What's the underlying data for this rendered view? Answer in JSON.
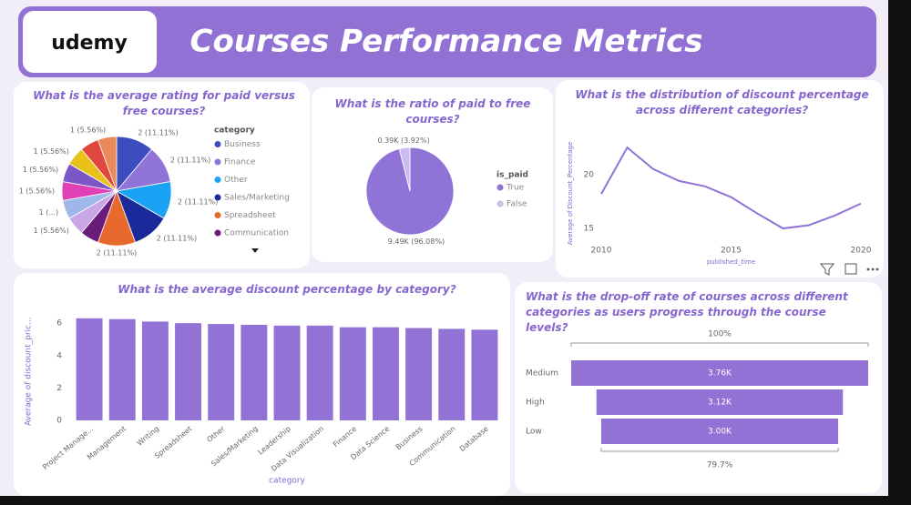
{
  "header": {
    "logo": "udemy",
    "title": "Courses Performance Metrics"
  },
  "chart_data": [
    {
      "type": "pie",
      "title": "What is the average rating for paid versus free courses?",
      "legend_title": "category",
      "categories": [
        "Business",
        "Finance",
        "Other",
        "Sales/Marketing",
        "Spreadsheet",
        "Communication",
        null,
        null,
        null,
        null,
        null,
        null,
        null
      ],
      "values": [
        2,
        2,
        2,
        2,
        2,
        1,
        1,
        1,
        1,
        1,
        1,
        1,
        1
      ],
      "value_labels": [
        "2 (11.11%)",
        "2 (11.11%)",
        "2 (11.11%)",
        "2 (11.11%)",
        "2 (11.11%)",
        null,
        "1 (5.56%)",
        "1 (...)",
        "1 (5.56%)",
        "1 (5.56%)",
        "1 (5.56%)",
        null,
        "1 (5.56%)"
      ],
      "colors": [
        "#3d4dbd",
        "#8f73d6",
        "#1aa3f5",
        "#1b2a9a",
        "#e8692d",
        "#6a1c7a",
        "#c9a6e6",
        "#9fb7e8",
        "#e03fb5",
        "#7a56c9",
        "#e8c21a",
        "#e2473f",
        "#e88a5a"
      ]
    },
    {
      "type": "pie",
      "title": "What is the ratio of paid to free courses?",
      "legend_title": "is_paid",
      "categories": [
        "True",
        "False"
      ],
      "values": [
        9490,
        390
      ],
      "value_labels": [
        "9.49K (96.08%)",
        "0.39K (3.92%)"
      ],
      "colors": [
        "#8f73d6",
        "#cbbcee"
      ]
    },
    {
      "type": "line",
      "title": "What is the distribution of discount percentage across different categories?",
      "x_label": "published_time",
      "y_label": "Average of Discount_Percentage",
      "x": [
        2010,
        2011,
        2012,
        2013,
        2014,
        2015,
        2016,
        2017,
        2018,
        2019,
        2020
      ],
      "values": [
        18.2,
        22.5,
        20.5,
        19.4,
        18.9,
        17.9,
        16.4,
        15.0,
        15.3,
        16.2,
        17.3
      ],
      "color": "#8f73d6",
      "xlim": [
        2010,
        2020
      ],
      "xticks": [
        2010,
        2015,
        2020
      ],
      "ylim": [
        13.4,
        23.1
      ],
      "yticks": [
        15,
        20
      ]
    },
    {
      "type": "bar",
      "title": "What is the average discount percentage by category?",
      "x_label": "category",
      "y_label": "Average of discount_pric...",
      "categories": [
        "Project Manage...",
        "Management",
        "Writing",
        "Spreadsheet",
        "Other",
        "Sales/Marketing",
        "Leadership",
        "Data Visualization",
        "Finance",
        "Data Science",
        "Business",
        "Communication",
        "Database"
      ],
      "values": [
        6.3,
        6.25,
        6.1,
        6.0,
        5.95,
        5.9,
        5.85,
        5.85,
        5.75,
        5.75,
        5.7,
        5.65,
        5.6
      ],
      "color": "#9272d4",
      "ylim": [
        0,
        6.6
      ],
      "yticks": [
        0,
        2,
        4,
        6
      ]
    },
    {
      "type": "funnel",
      "title": "What is the drop-off rate of courses across different categories as users progress through the course levels?",
      "categories": [
        "Medium",
        "High",
        "Low"
      ],
      "values": [
        3760,
        3120,
        3000
      ],
      "value_labels": [
        "3.76K",
        "3.12K",
        "3.00K"
      ],
      "top_label": "100%",
      "bottom_label": "79.7%",
      "color": "#9272d4"
    }
  ]
}
